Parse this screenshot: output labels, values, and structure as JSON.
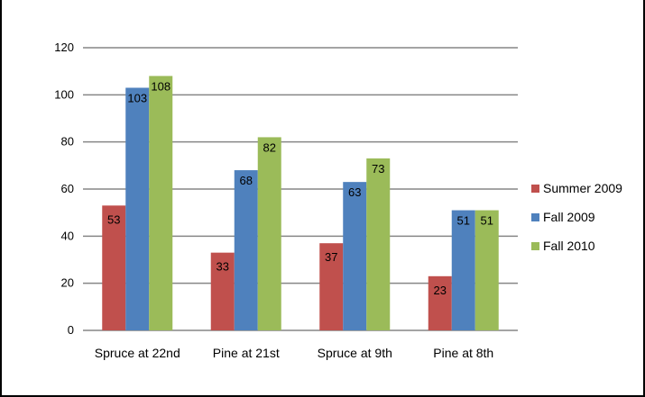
{
  "chart_data": {
    "type": "bar",
    "title": "",
    "xlabel": "",
    "ylabel": "",
    "categories": [
      "Spruce at 22nd",
      "Pine at 21st",
      "Spruce at 9th",
      "Pine at 8th"
    ],
    "series": [
      {
        "name": "Summer 2009",
        "values": [
          53,
          33,
          37,
          23
        ],
        "color": "#c0504d"
      },
      {
        "name": "Fall 2009",
        "values": [
          103,
          68,
          63,
          51
        ],
        "color": "#4f81bd"
      },
      {
        "name": "Fall 2010",
        "values": [
          108,
          82,
          73,
          51
        ],
        "color": "#9bbb59"
      }
    ],
    "ylim": [
      0,
      120
    ],
    "yticks": [
      0,
      20,
      40,
      60,
      80,
      100,
      120
    ],
    "grid": true,
    "legend": "right"
  }
}
